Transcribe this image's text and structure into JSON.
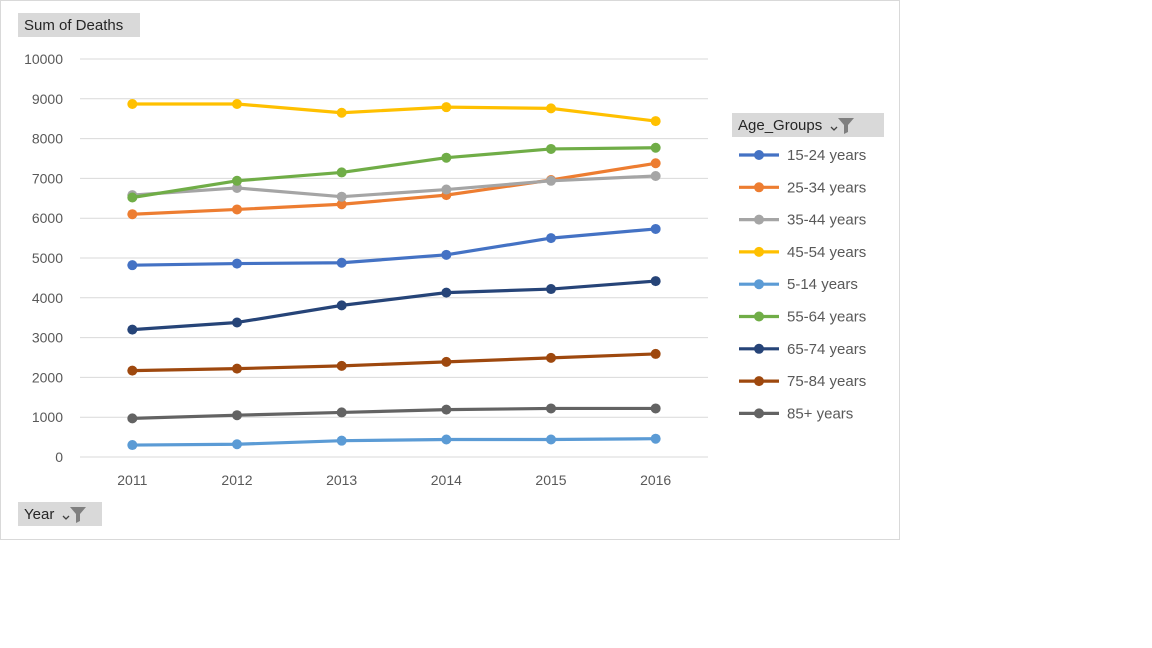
{
  "chart_data": {
    "type": "line",
    "value_field": "Sum of Deaths",
    "category_field": "Year",
    "legend_field": "Age_Groups",
    "categories": [
      "2011",
      "2012",
      "2013",
      "2014",
      "2015",
      "2016"
    ],
    "ylim": [
      0,
      10000
    ],
    "yticks": [
      "0",
      "1000",
      "2000",
      "3000",
      "4000",
      "5000",
      "6000",
      "7000",
      "8000",
      "9000",
      "10000"
    ],
    "grid": true,
    "legend_position": "right",
    "series": [
      {
        "name": "15-24 years",
        "color": "#4472c4",
        "values": [
          4820,
          4860,
          4880,
          5080,
          5500,
          5730
        ]
      },
      {
        "name": "25-34 years",
        "color": "#ed7d31",
        "values": [
          6100,
          6220,
          6350,
          6580,
          6960,
          7380
        ]
      },
      {
        "name": "35-44 years",
        "color": "#a5a5a5",
        "values": [
          6580,
          6760,
          6540,
          6720,
          6940,
          7060
        ]
      },
      {
        "name": "45-54 years",
        "color": "#ffc000",
        "values": [
          8870,
          8870,
          8650,
          8790,
          8760,
          8440
        ]
      },
      {
        "name": "5-14 years",
        "color": "#5b9bd5",
        "values": [
          300,
          320,
          410,
          440,
          440,
          460
        ]
      },
      {
        "name": "55-64 years",
        "color": "#70ad47",
        "values": [
          6520,
          6940,
          7150,
          7520,
          7740,
          7770
        ]
      },
      {
        "name": "65-74 years",
        "color": "#264478",
        "values": [
          3200,
          3380,
          3810,
          4130,
          4220,
          4420
        ]
      },
      {
        "name": "75-84 years",
        "color": "#9e480e",
        "values": [
          2170,
          2220,
          2290,
          2390,
          2490,
          2590
        ]
      },
      {
        "name": "85+ years",
        "color": "#636363",
        "values": [
          970,
          1050,
          1120,
          1190,
          1220,
          1220
        ]
      }
    ]
  },
  "ui": {
    "field_bg": "#d9d9d9",
    "grid_color": "#d9d9d9",
    "icons": {
      "filter": "filter-funnel-icon",
      "dropdown": "dropdown-arrow-icon"
    }
  }
}
